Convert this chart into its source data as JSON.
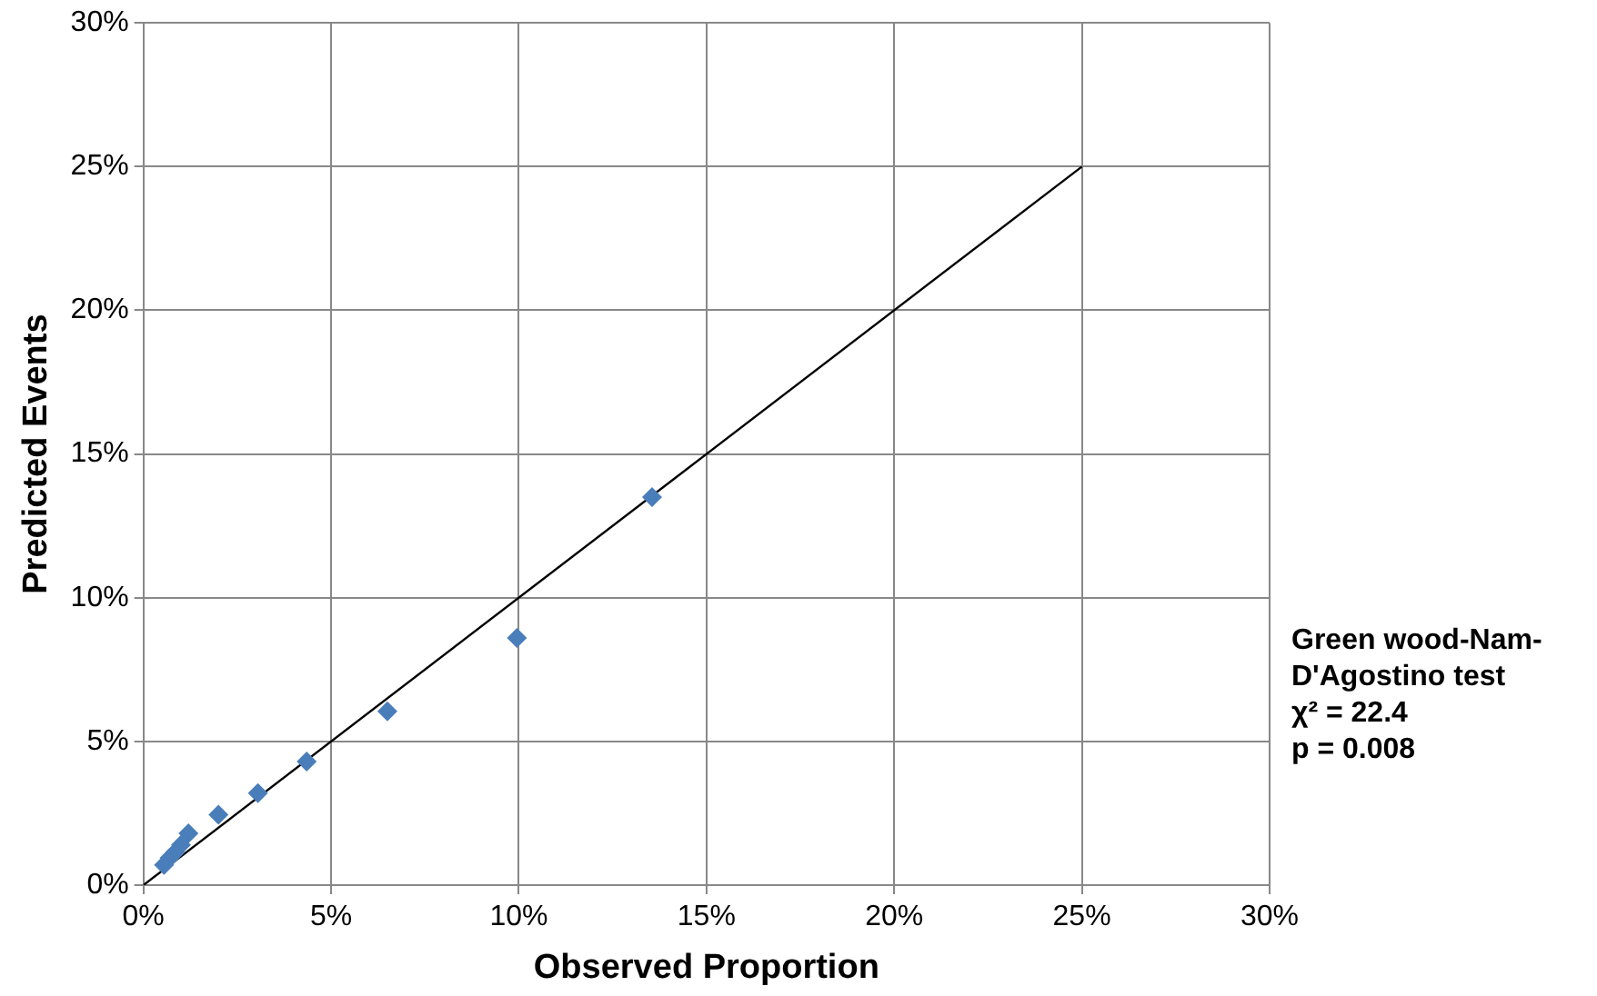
{
  "chart_data": {
    "type": "scatter",
    "xlabel": "Observed Proportion",
    "ylabel": "Predicted Events",
    "x": [
      0.55,
      0.7,
      0.85,
      1.0,
      1.2,
      2.0,
      3.05,
      4.35,
      6.5,
      9.95,
      13.55
    ],
    "series": [
      {
        "color": "#4a7ebb",
        "marker": "diamond",
        "values": [
          0.7,
          0.95,
          1.15,
          1.4,
          1.8,
          2.45,
          3.2,
          4.3,
          6.05,
          8.6,
          13.5
        ]
      },
      {
        "type": "line",
        "color": "#000000",
        "marker": "none",
        "x": [
          0,
          25
        ],
        "values": [
          0,
          25
        ]
      }
    ],
    "xlim": [
      0,
      30
    ],
    "ylim": [
      0,
      30
    ],
    "xticks": [
      {
        "value": 0,
        "label": "0%"
      },
      {
        "value": 5,
        "label": "5%"
      },
      {
        "value": 10,
        "label": "10%"
      },
      {
        "value": 15,
        "label": "15%"
      },
      {
        "value": 20,
        "label": "20%"
      },
      {
        "value": 25,
        "label": "25%"
      },
      {
        "value": 30,
        "label": "30%"
      }
    ],
    "yticks": [
      {
        "value": 0,
        "label": "0%"
      },
      {
        "value": 5,
        "label": "5%"
      },
      {
        "value": 10,
        "label": "10%"
      },
      {
        "value": 15,
        "label": "15%"
      },
      {
        "value": 20,
        "label": "20%"
      },
      {
        "value": 25,
        "label": "25%"
      },
      {
        "value": 30,
        "label": "30%"
      }
    ],
    "grid": true,
    "legend": false,
    "annotations": [
      "Green wood-Nam-\nD'Agostino test\nχ² = 22.4\np = 0.008"
    ]
  }
}
